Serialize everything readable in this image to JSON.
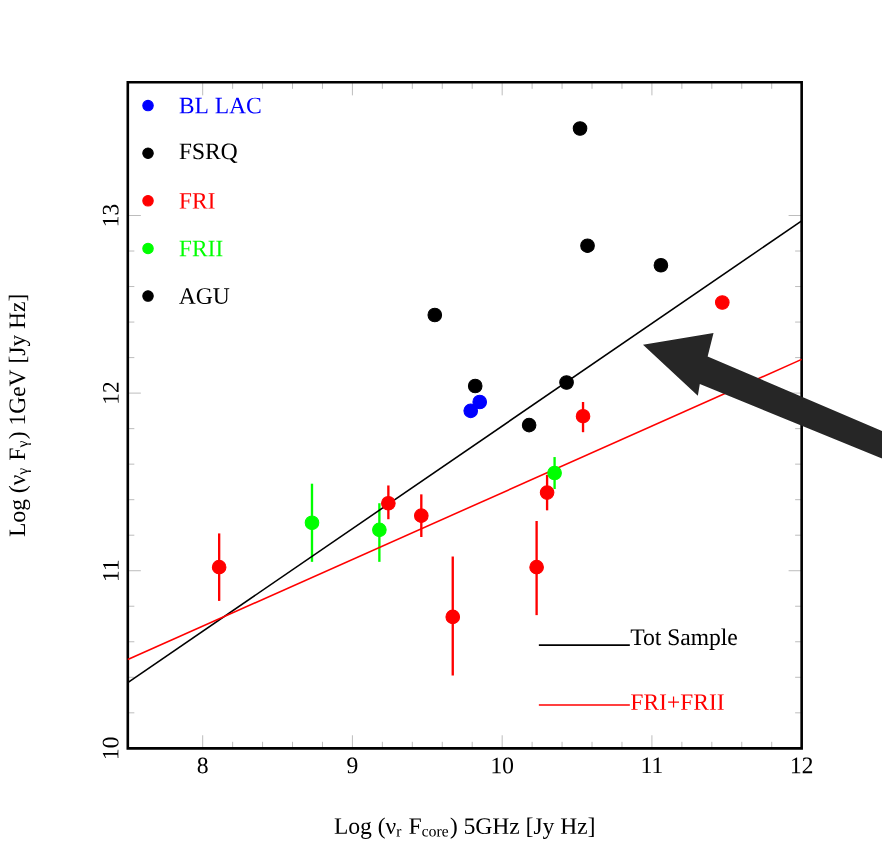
{
  "chart_data": {
    "type": "scatter",
    "xlabel": "Log (ν$_{r}$ F$_{core}$) 5GHz [Jy Hz]",
    "ylabel": "Log (ν$_{γ}$ F$_{γ}$) 1GeV [Jy Hz]",
    "xlim": [
      7.5,
      12
    ],
    "ylim": [
      10,
      13.75
    ],
    "xticks": [
      8,
      9,
      10,
      11,
      12
    ],
    "yticks": [
      10,
      11,
      12,
      13
    ],
    "marker": "circle",
    "legend": "top left",
    "grid": false,
    "series": [
      {
        "name": "BL LAC",
        "color": "#0000ff",
        "x": [
          9.79,
          9.85
        ],
        "values": [
          11.9,
          11.95
        ]
      },
      {
        "name": "FSRQ",
        "color": "#000000",
        "x": [
          10.52,
          10.57,
          11.06,
          9.82,
          10.43,
          10.18
        ],
        "values": [
          13.49,
          12.83,
          12.72,
          12.04,
          12.06,
          11.82
        ]
      },
      {
        "name": "FRI",
        "color": "#ff0000",
        "x": [
          8.11,
          9.24,
          9.46,
          9.67,
          10.23,
          10.3,
          10.54,
          11.47
        ],
        "values": [
          11.02,
          11.38,
          11.31,
          10.74,
          11.02,
          11.44,
          11.87,
          12.51
        ],
        "errors": [
          [
            10.83,
            11.21
          ],
          [
            11.29,
            11.48
          ],
          [
            11.19,
            11.43
          ],
          [
            10.41,
            11.08
          ],
          [
            10.75,
            11.28
          ],
          [
            11.34,
            11.54
          ],
          [
            11.78,
            11.95
          ],
          null
        ]
      },
      {
        "name": "FRII",
        "color": "#00ff00",
        "x": [
          8.73,
          9.18,
          10.35
        ],
        "values": [
          11.27,
          11.23,
          11.55
        ],
        "errors": [
          [
            11.05,
            11.49
          ],
          [
            11.05,
            11.38
          ],
          [
            11.46,
            11.64
          ]
        ]
      },
      {
        "name": "AGU",
        "color": "#000000",
        "x": [
          9.55
        ],
        "values": [
          12.44
        ]
      },
      {
        "name": "Tot Sample",
        "type": "line",
        "marker": "none",
        "color": "#000000",
        "x": [
          7.5,
          12
        ],
        "values": [
          10.37,
          12.97
        ]
      },
      {
        "name": "FRI+FRII",
        "type": "line",
        "marker": "none",
        "color": "#ff0000",
        "x": [
          7.5,
          12
        ],
        "values": [
          10.5,
          12.19
        ]
      }
    ]
  }
}
